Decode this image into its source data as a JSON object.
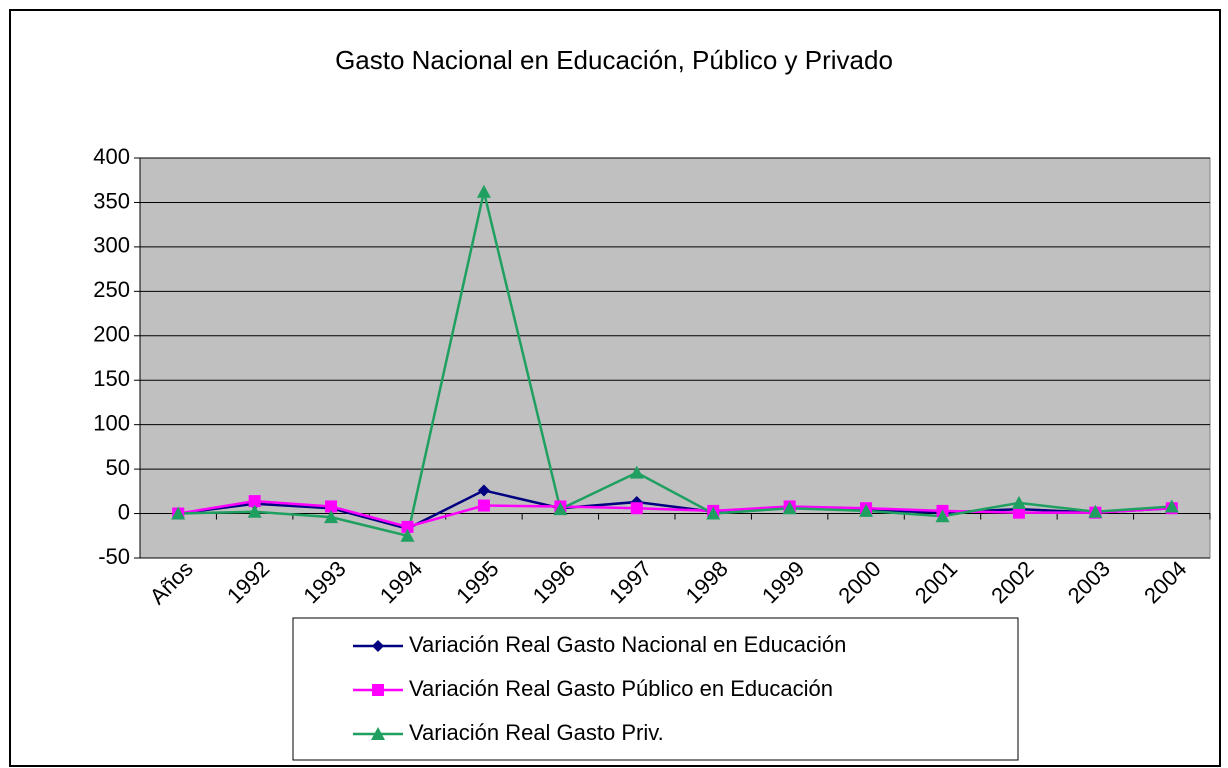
{
  "chart_data": {
    "type": "line",
    "title": "Gasto Nacional en Educación, Público y Privado",
    "categories": [
      "Años",
      "1992",
      "1993",
      "1994",
      "1995",
      "1996",
      "1997",
      "1998",
      "1999",
      "2000",
      "2001",
      "2002",
      "2003",
      "2004"
    ],
    "series": [
      {
        "name": "Variación Real Gasto Nacional en Educación",
        "color": "#000080",
        "marker": "diamond",
        "values": [
          0,
          11,
          6,
          -17,
          26,
          6,
          13,
          2,
          7,
          4,
          1,
          5,
          1,
          6
        ]
      },
      {
        "name": "Variación Real Gasto Público en Educación",
        "color": "#ff00ff",
        "marker": "square",
        "values": [
          0,
          14,
          8,
          -15,
          9,
          8,
          6,
          3,
          8,
          6,
          3,
          1,
          1,
          6
        ]
      },
      {
        "name": "Variación Real Gasto Priv.",
        "color": "#1fa060",
        "marker": "triangle",
        "values": [
          0,
          2,
          -4,
          -25,
          362,
          5,
          46,
          0,
          6,
          3,
          -3,
          12,
          2,
          8
        ]
      }
    ],
    "ylim": [
      -50,
      400
    ],
    "yticks": [
      -50,
      0,
      50,
      100,
      150,
      200,
      250,
      300,
      350,
      400
    ],
    "grid": true,
    "legend": "bottom"
  }
}
